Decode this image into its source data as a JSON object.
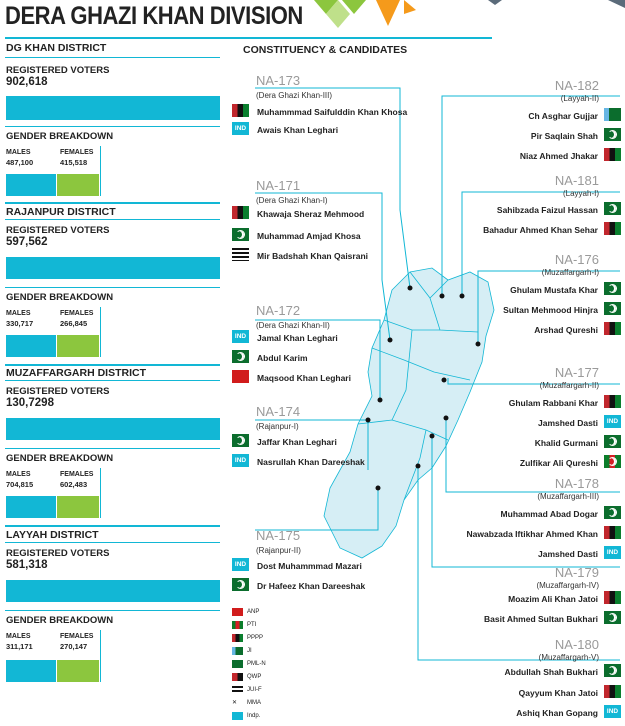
{
  "title": "DERA GHAZI KHAN DIVISION",
  "left_header": "DG KHAN DISTRICT",
  "right_header": "CONSTITUENCY & CANDIDATES",
  "districts": [
    {
      "name": "DG KHAN DISTRICT",
      "voters_label": "REGISTERED VOTERS",
      "voters": "902,618",
      "gender_label": "GENDER BREAKDOWN",
      "males_label": "MALES",
      "males": "487,100",
      "females_label": "FEMALES",
      "females": "415,518"
    },
    {
      "name": "RAJANPUR DISTRICT",
      "voters_label": "REGISTERED VOTERS",
      "voters": "597,562",
      "gender_label": "GENDER BREAKDOWN",
      "males_label": "MALES",
      "males": "330,717",
      "females_label": "FEMALES",
      "females": "266,845"
    },
    {
      "name": "MUZAFFARGARH DISTRICT",
      "voters_label": "REGISTERED VOTERS",
      "voters": "130,7298",
      "gender_label": "GENDER BREAKDOWN",
      "males_label": "MALES",
      "males": "704,815",
      "females_label": "FEMALES",
      "females": "602,483"
    },
    {
      "name": "LAYYAH DISTRICT",
      "voters_label": "REGISTERED VOTERS",
      "voters": "581,318",
      "gender_label": "GENDER BREAKDOWN",
      "males_label": "MALES",
      "males": "311,171",
      "females_label": "FEMALES",
      "females": "270,147"
    }
  ],
  "left_constituencies": [
    {
      "na": "NA-173",
      "sub": "(Dera Ghazi Khan-III)",
      "candidates": [
        {
          "name": "Muhammmad Saifulddin Khan Khosa",
          "party": "ppp"
        },
        {
          "name": "Awais Khan Leghari",
          "party": "ind"
        }
      ]
    },
    {
      "na": "NA-171",
      "sub": "(Dera Ghazi Khan-I)",
      "candidates": [
        {
          "name": "Khawaja Sheraz Mehmood",
          "party": "ppp"
        },
        {
          "name": "Muhammad Amjad Khosa",
          "party": "pmln"
        },
        {
          "name": "Mir Badshah Khan Qaisrani",
          "party": "juif"
        }
      ]
    },
    {
      "na": "NA-172",
      "sub": "(Dera Ghazi Khan-II)",
      "candidates": [
        {
          "name": "Jamal Khan Leghari",
          "party": "ind"
        },
        {
          "name": "Abdul Karim",
          "party": "pmln"
        },
        {
          "name": "Maqsood Khan Leghari",
          "party": "anp"
        }
      ]
    },
    {
      "na": "NA-174",
      "sub": "(Rajanpur-I)",
      "candidates": [
        {
          "name": "Jaffar Khan Leghari",
          "party": "pmln"
        },
        {
          "name": "Nasrullah Khan Dareeshak",
          "party": "ind"
        }
      ]
    },
    {
      "na": "NA-175",
      "sub": "(Rajanpur-II)",
      "candidates": [
        {
          "name": "Dost Muhammmad Mazari",
          "party": "ind"
        },
        {
          "name": "Dr Hafeez Khan Dareeshak",
          "party": "pmln"
        }
      ]
    }
  ],
  "right_constituencies": [
    {
      "na": "NA-182",
      "sub": "(Layyah-II)",
      "candidates": [
        {
          "name": "Ch Asghar Gujjar",
          "party": "ji"
        },
        {
          "name": "Pir Saqlain Shah",
          "party": "pmln"
        },
        {
          "name": "Niaz Ahmed Jhakar",
          "party": "ppp"
        }
      ]
    },
    {
      "na": "NA-181",
      "sub": "(Layyah-I)",
      "candidates": [
        {
          "name": "Sahibzada Faizul Hassan",
          "party": "pmln"
        },
        {
          "name": "Bahadur Ahmed Khan Sehar",
          "party": "ppp"
        }
      ]
    },
    {
      "na": "NA-176",
      "sub": "(Muzaffargarh-I)",
      "candidates": [
        {
          "name": "Ghulam Mustafa Khar",
          "party": "pmln"
        },
        {
          "name": "Sultan Mehmood Hinjra",
          "party": "pmln"
        },
        {
          "name": "Arshad Qureshi",
          "party": "ppp"
        }
      ]
    },
    {
      "na": "NA-177",
      "sub": "(Muzaffargarh-II)",
      "candidates": [
        {
          "name": "Ghulam Rabbani Khar",
          "party": "ppp"
        },
        {
          "name": "Jamshed Dasti",
          "party": "ind"
        },
        {
          "name": "Khalid Gurmani",
          "party": "pmln"
        },
        {
          "name": "Zulfikar Ali Qureshi",
          "party": "pti"
        }
      ]
    },
    {
      "na": "NA-178",
      "sub": "(Muzaffargarh-III)",
      "candidates": [
        {
          "name": "Muhammad Abad Dogar",
          "party": "pmln"
        },
        {
          "name": "Nawabzada Iftikhar Ahmed Khan",
          "party": "ppp"
        },
        {
          "name": "Jamshed Dasti",
          "party": "ind"
        }
      ]
    },
    {
      "na": "NA-179",
      "sub": "(Muzaffargarh-IV)",
      "candidates": [
        {
          "name": "Moazim Ali Khan Jatoi",
          "party": "ppp"
        },
        {
          "name": "Basit Ahmed Sultan Bukhari",
          "party": "pmln"
        }
      ]
    },
    {
      "na": "NA-180",
      "sub": "(Muzaffargarh-V)",
      "candidates": [
        {
          "name": "Abdullah Shah Bukhari",
          "party": "pmln"
        },
        {
          "name": "Qayyum Khan Jatoi",
          "party": "ppp"
        },
        {
          "name": "Ashiq Khan Gopang",
          "party": "ind"
        }
      ]
    }
  ],
  "legend": [
    {
      "party": "anp",
      "label": "ANP"
    },
    {
      "party": "pti",
      "label": "PTI"
    },
    {
      "party": "ppp",
      "label": "PPPP"
    },
    {
      "party": "ji",
      "label": "JI"
    },
    {
      "party": "pmln",
      "label": "PML-N"
    },
    {
      "party": "qwp",
      "label": "QWP"
    },
    {
      "party": "juif",
      "label": "JUI-F"
    },
    {
      "party": "mma",
      "label": "MMA"
    },
    {
      "party": "ind",
      "label": "Indp."
    }
  ],
  "ind_text": "IND",
  "colors": {
    "accent": "#12b7d5",
    "female": "#8cc63e",
    "map": "#d6eef5"
  }
}
